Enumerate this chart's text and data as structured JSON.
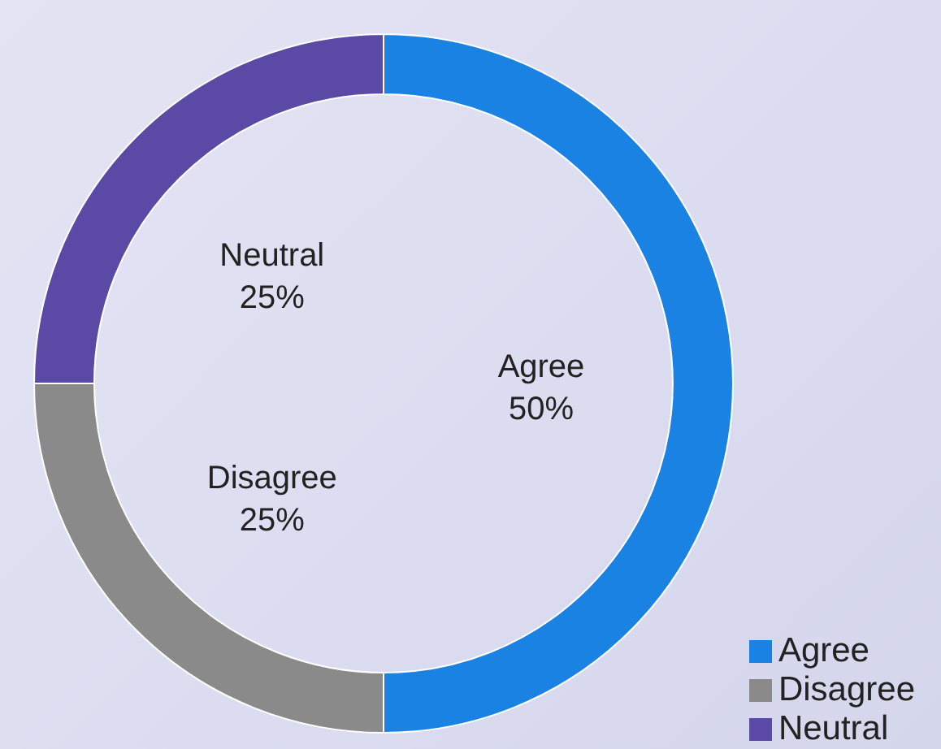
{
  "chart_data": {
    "type": "donut",
    "categories": [
      "Agree",
      "Disagree",
      "Neutral"
    ],
    "values": [
      50,
      25,
      25
    ],
    "colors": [
      "#1a82e2",
      "#8a8a8a",
      "#5a4aa6"
    ],
    "value_labels": [
      "50%",
      "25%",
      "25%"
    ],
    "legend": "bottom right"
  }
}
